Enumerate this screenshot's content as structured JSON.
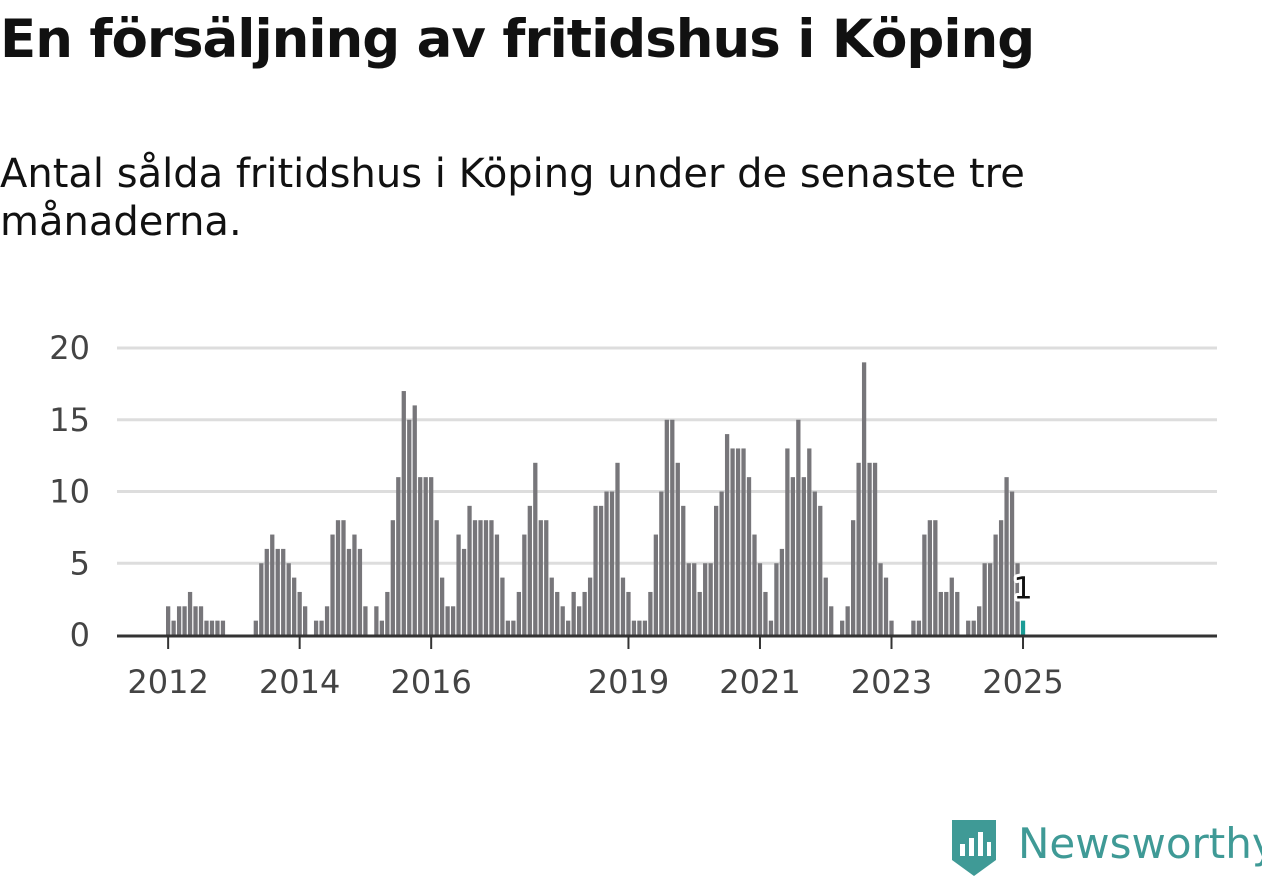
{
  "title": "En försäljning av fritidshus i Köping",
  "subtitle": "Antal sålda fritidshus i Köping under de senaste tre månaderna.",
  "logo": {
    "text": "Newsworthy",
    "icon": "newsworthy-logo-icon"
  },
  "colors": {
    "bar": "#77767a",
    "highlight": "#1a9c96",
    "grid": "#dddddd",
    "axis": "#333333",
    "text": "#444444",
    "brand": "#3f9a96"
  },
  "chart_data": {
    "type": "bar",
    "title": "En försäljning av fritidshus i Köping",
    "xlabel": "",
    "ylabel": "",
    "ylim": [
      0,
      20
    ],
    "yticks": [
      "0",
      "5",
      "10",
      "15",
      "20"
    ],
    "xticks": [
      {
        "label": "2012",
        "value": 2012
      },
      {
        "label": "2014",
        "value": 2014
      },
      {
        "label": "2016",
        "value": 2016
      },
      {
        "label": "2019",
        "value": 2019
      },
      {
        "label": "2021",
        "value": 2021
      },
      {
        "label": "2023",
        "value": 2023
      },
      {
        "label": "2025",
        "value": 2025
      }
    ],
    "grid": true,
    "start": "2012-01",
    "end": "2025-01",
    "values": [
      2,
      1,
      2,
      2,
      3,
      2,
      2,
      1,
      1,
      1,
      1,
      0,
      0,
      0,
      0,
      0,
      1,
      5,
      6,
      7,
      6,
      6,
      5,
      4,
      3,
      2,
      0,
      1,
      1,
      2,
      7,
      8,
      8,
      6,
      7,
      6,
      2,
      0,
      2,
      1,
      3,
      8,
      11,
      17,
      15,
      16,
      11,
      11,
      11,
      8,
      4,
      2,
      2,
      7,
      6,
      9,
      8,
      8,
      8,
      8,
      7,
      4,
      1,
      1,
      3,
      7,
      9,
      12,
      8,
      8,
      4,
      3,
      2,
      1,
      3,
      2,
      3,
      4,
      9,
      9,
      10,
      10,
      12,
      4,
      3,
      1,
      1,
      1,
      3,
      7,
      10,
      15,
      15,
      12,
      9,
      5,
      5,
      3,
      5,
      5,
      9,
      10,
      14,
      13,
      13,
      13,
      11,
      7,
      5,
      3,
      1,
      5,
      6,
      13,
      11,
      15,
      11,
      13,
      10,
      9,
      4,
      2,
      0,
      1,
      2,
      8,
      12,
      19,
      12,
      12,
      5,
      4,
      1,
      0,
      0,
      0,
      1,
      1,
      7,
      8,
      8,
      3,
      3,
      4,
      3,
      0,
      1,
      1,
      2,
      5,
      5,
      7,
      8,
      11,
      10,
      5,
      1
    ],
    "highlight": {
      "label": "1",
      "value": 1,
      "month": "2025-01"
    }
  }
}
